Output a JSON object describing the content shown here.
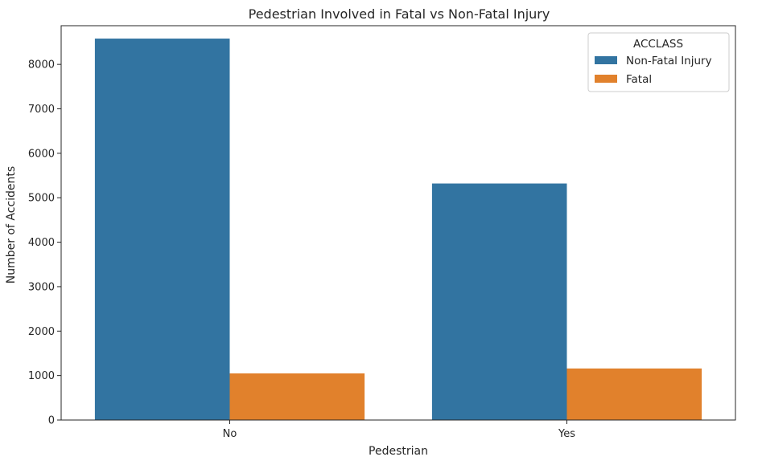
{
  "chart_data": {
    "type": "bar",
    "title": "Pedestrian Involved in Fatal vs Non-Fatal Injury",
    "xlabel": "Pedestrian",
    "ylabel": "Number of Accidents",
    "categories": [
      "No",
      "Yes"
    ],
    "series": [
      {
        "name": "Non-Fatal Injury",
        "values": [
          8580,
          5320
        ],
        "color": "#3274a1"
      },
      {
        "name": "Fatal",
        "values": [
          1050,
          1160
        ],
        "color": "#e1812c"
      }
    ],
    "ylim": [
      0,
      8870
    ],
    "yticks": [
      0,
      1000,
      2000,
      3000,
      4000,
      5000,
      6000,
      7000,
      8000
    ],
    "legend": {
      "title": "ACCLASS",
      "placement": "top-right"
    },
    "grid": false
  }
}
